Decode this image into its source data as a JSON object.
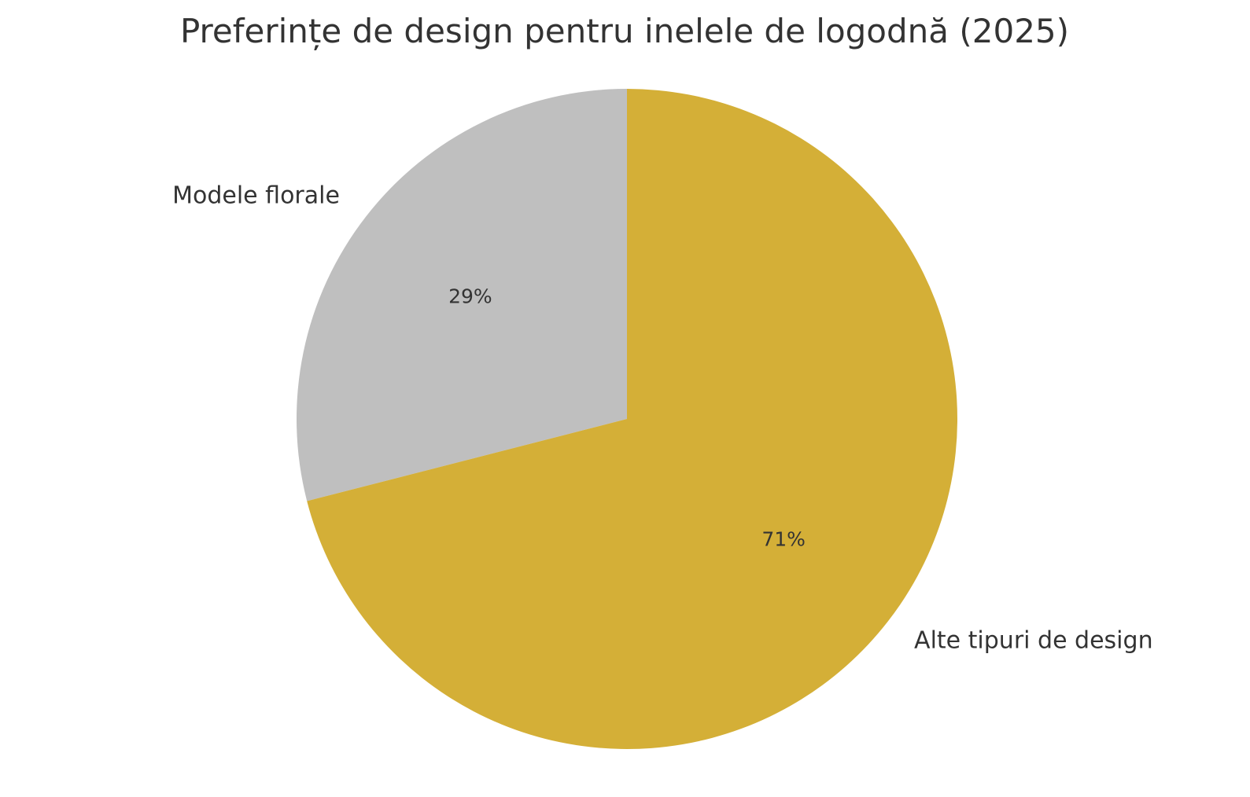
{
  "chart_data": {
    "type": "pie",
    "title": "Preferințe de design pentru inelele de logodnă (2025)",
    "slices": [
      {
        "label": "Modele florale",
        "value": 29,
        "percent_label": "29%",
        "color": "#bfbfbf"
      },
      {
        "label": "Alte tipuri de design",
        "value": 71,
        "percent_label": "71%",
        "color": "#d4af37"
      }
    ],
    "start_angle": "top",
    "direction": "counterclockwise",
    "legend": "none"
  }
}
